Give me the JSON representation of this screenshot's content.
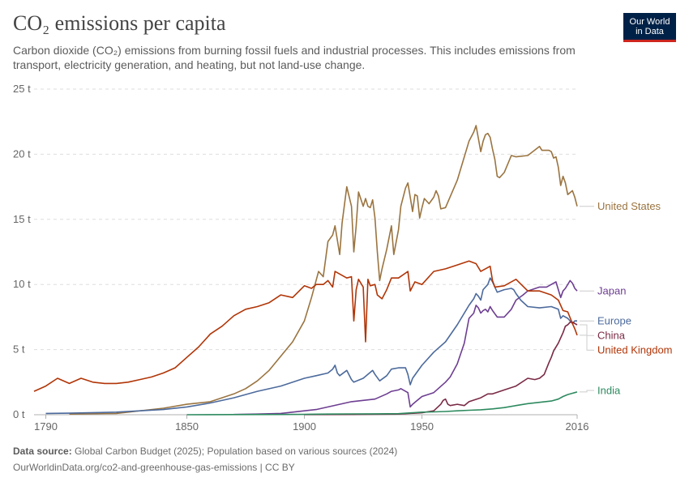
{
  "title": "CO₂ emissions per capita",
  "subtitle": "Carbon dioxide (CO₂) emissions from burning fossil fuels and industrial processes. This includes emissions from transport, electricity generation, and heating, but not land-use change.",
  "logo": {
    "line1": "Our World",
    "line2": "in Data"
  },
  "footer": {
    "source_label": "Data source:",
    "source_text": " Global Carbon Budget (2025); Population based on various sources (2024)",
    "url": "OurWorldinData.org/co2-and-greenhouse-gas-emissions | CC BY"
  },
  "chart_data": {
    "type": "line",
    "xlim": [
      1785,
      2016
    ],
    "ylim": [
      0,
      25
    ],
    "y_ticks": [
      0,
      5,
      10,
      15,
      20,
      25
    ],
    "y_tick_labels": [
      "0 t",
      "5 t",
      "10 t",
      "15 t",
      "20 t",
      "25 t"
    ],
    "x_ticks": [
      1790,
      1850,
      1900,
      1950,
      2016
    ],
    "x_tick_labels": [
      "1790",
      "1850",
      "1900",
      "1950",
      "2016"
    ],
    "grid": "horizontal dashed",
    "series": [
      {
        "name": "United States",
        "color": "#9a7440",
        "x": [
          1800,
          1820,
          1840,
          1850,
          1860,
          1870,
          1875,
          1880,
          1885,
          1890,
          1895,
          1900,
          1903,
          1906,
          1908,
          1910,
          1912,
          1913,
          1915,
          1916,
          1918,
          1920,
          1921,
          1922,
          1923,
          1925,
          1926,
          1927,
          1928,
          1929,
          1930,
          1931,
          1932,
          1933,
          1935,
          1937,
          1938,
          1940,
          1941,
          1943,
          1944,
          1945,
          1946,
          1947,
          1948,
          1949,
          1950,
          1951,
          1953,
          1955,
          1956,
          1957,
          1958,
          1960,
          1965,
          1970,
          1972,
          1973,
          1974,
          1975,
          1976,
          1977,
          1978,
          1979,
          1980,
          1981,
          1982,
          1983,
          1985,
          1988,
          1990,
          1995,
          2000,
          2001,
          2004,
          2005,
          2006,
          2007,
          2008,
          2009,
          2010,
          2011,
          2012,
          2014,
          2015,
          2016
        ],
        "y": [
          0.05,
          0.1,
          0.5,
          0.8,
          1.0,
          1.6,
          2.0,
          2.6,
          3.4,
          4.5,
          5.6,
          7.2,
          9.0,
          11.0,
          10.6,
          13.3,
          13.8,
          14.5,
          12.3,
          14.7,
          17.5,
          16.0,
          12.5,
          14.5,
          17.1,
          16.0,
          16.6,
          16.0,
          15.9,
          16.5,
          15.1,
          12.5,
          10.3,
          11.2,
          12.7,
          14.5,
          12.3,
          14.2,
          16.0,
          17.4,
          17.8,
          16.7,
          15.6,
          16.9,
          16.8,
          15.1,
          15.9,
          16.6,
          16.2,
          16.7,
          17.2,
          16.8,
          15.8,
          15.9,
          18.0,
          21.0,
          21.7,
          22.2,
          21.2,
          20.2,
          21.0,
          21.5,
          21.6,
          21.3,
          20.4,
          19.6,
          18.3,
          18.2,
          18.6,
          19.9,
          19.8,
          19.9,
          20.6,
          20.3,
          20.3,
          20.2,
          19.7,
          19.8,
          19.0,
          17.6,
          18.3,
          17.8,
          16.9,
          17.2,
          16.7,
          16.0
        ]
      },
      {
        "name": "Japan",
        "color": "#6d3e91",
        "x": [
          1870,
          1880,
          1890,
          1900,
          1905,
          1910,
          1915,
          1920,
          1925,
          1930,
          1935,
          1937,
          1940,
          1941,
          1944,
          1945,
          1946,
          1948,
          1950,
          1955,
          1960,
          1962,
          1965,
          1968,
          1970,
          1972,
          1973,
          1974,
          1975,
          1976,
          1977,
          1978,
          1979,
          1980,
          1982,
          1985,
          1988,
          1990,
          1993,
          1995,
          2000,
          2003,
          2005,
          2007,
          2008,
          2009,
          2010,
          2011,
          2013,
          2014,
          2015,
          2016
        ],
        "y": [
          0.02,
          0.05,
          0.1,
          0.3,
          0.4,
          0.6,
          0.8,
          1.0,
          1.1,
          1.2,
          1.6,
          1.8,
          1.9,
          2.0,
          1.7,
          0.6,
          0.8,
          1.1,
          1.4,
          1.7,
          2.5,
          2.9,
          3.9,
          5.5,
          7.4,
          7.8,
          8.4,
          8.2,
          7.8,
          8.0,
          8.1,
          7.9,
          8.3,
          8.0,
          7.5,
          7.5,
          8.1,
          8.8,
          9.2,
          9.5,
          9.8,
          9.8,
          10.0,
          10.2,
          9.6,
          9.0,
          9.5,
          9.7,
          10.3,
          10.1,
          9.7,
          9.5
        ]
      },
      {
        "name": "Europe",
        "color": "#4c6a9c",
        "x": [
          1790,
          1800,
          1820,
          1840,
          1850,
          1860,
          1870,
          1880,
          1890,
          1900,
          1905,
          1910,
          1912,
          1913,
          1914,
          1915,
          1918,
          1920,
          1921,
          1925,
          1929,
          1930,
          1932,
          1935,
          1937,
          1940,
          1943,
          1944,
          1945,
          1946,
          1948,
          1950,
          1955,
          1960,
          1965,
          1970,
          1972,
          1973,
          1974,
          1975,
          1976,
          1978,
          1979,
          1980,
          1981,
          1982,
          1985,
          1988,
          1989,
          1990,
          1992,
          1995,
          2000,
          2005,
          2008,
          2009,
          2010,
          2012,
          2014,
          2015,
          2016
        ],
        "y": [
          0.1,
          0.12,
          0.2,
          0.4,
          0.6,
          0.9,
          1.3,
          1.8,
          2.2,
          2.8,
          3.0,
          3.2,
          3.5,
          3.8,
          3.2,
          3.0,
          3.4,
          2.7,
          2.5,
          2.8,
          3.4,
          3.1,
          2.6,
          3.0,
          3.5,
          3.6,
          3.6,
          3.1,
          2.3,
          2.8,
          3.3,
          3.8,
          4.8,
          5.6,
          6.9,
          8.4,
          8.9,
          9.3,
          9.1,
          8.8,
          9.6,
          10.0,
          10.5,
          10.2,
          9.8,
          9.4,
          9.6,
          9.7,
          9.6,
          9.3,
          8.8,
          8.3,
          8.2,
          8.3,
          8.1,
          7.4,
          7.6,
          7.4,
          7.0,
          7.2,
          7.2
        ]
      },
      {
        "name": "China",
        "color": "#7a2a45",
        "x": [
          1900,
          1920,
          1930,
          1940,
          1950,
          1955,
          1958,
          1959,
          1960,
          1961,
          1962,
          1965,
          1968,
          1970,
          1975,
          1978,
          1980,
          1985,
          1990,
          1995,
          1998,
          2000,
          2002,
          2004,
          2005,
          2006,
          2008,
          2010,
          2011,
          2012,
          2013,
          2014,
          2015,
          2016
        ],
        "y": [
          0.01,
          0.02,
          0.03,
          0.05,
          0.15,
          0.3,
          0.8,
          1.1,
          1.2,
          0.8,
          0.7,
          0.8,
          0.7,
          1.0,
          1.3,
          1.6,
          1.6,
          1.9,
          2.2,
          2.8,
          2.7,
          2.8,
          3.1,
          4.0,
          4.4,
          4.9,
          5.5,
          6.3,
          6.8,
          6.9,
          7.1,
          7.1,
          7.0,
          6.9
        ]
      },
      {
        "name": "United Kingdom",
        "color": "#b13507",
        "x": [
          1785,
          1790,
          1795,
          1800,
          1805,
          1810,
          1815,
          1820,
          1825,
          1830,
          1835,
          1840,
          1845,
          1850,
          1855,
          1860,
          1865,
          1870,
          1875,
          1880,
          1885,
          1890,
          1895,
          1900,
          1903,
          1905,
          1908,
          1910,
          1912,
          1913,
          1915,
          1918,
          1920,
          1921,
          1922,
          1923,
          1925,
          1926,
          1927,
          1928,
          1930,
          1931,
          1933,
          1935,
          1937,
          1940,
          1944,
          1945,
          1947,
          1950,
          1955,
          1960,
          1965,
          1970,
          1973,
          1975,
          1979,
          1980,
          1981,
          1985,
          1990,
          1995,
          2000,
          2005,
          2008,
          2010,
          2012,
          2014,
          2015,
          2016
        ],
        "y": [
          1.8,
          2.2,
          2.8,
          2.4,
          2.8,
          2.5,
          2.4,
          2.4,
          2.5,
          2.7,
          2.9,
          3.2,
          3.6,
          4.4,
          5.2,
          6.2,
          6.8,
          7.6,
          8.1,
          8.3,
          8.6,
          9.2,
          9.0,
          9.9,
          9.7,
          10.0,
          10.0,
          10.3,
          9.8,
          11.0,
          10.8,
          10.5,
          10.6,
          7.2,
          9.6,
          10.4,
          9.8,
          5.6,
          10.4,
          9.9,
          10.0,
          9.2,
          8.9,
          9.6,
          10.5,
          10.5,
          11.0,
          9.5,
          10.2,
          10.0,
          11.0,
          11.2,
          11.5,
          11.8,
          11.6,
          11.0,
          11.4,
          10.3,
          9.8,
          9.9,
          10.4,
          9.5,
          9.5,
          9.2,
          8.8,
          8.0,
          7.9,
          7.0,
          6.6,
          6.1
        ]
      },
      {
        "name": "India",
        "color": "#2d8a5f",
        "x": [
          1850,
          1870,
          1890,
          1900,
          1910,
          1920,
          1930,
          1940,
          1950,
          1955,
          1960,
          1965,
          1970,
          1975,
          1980,
          1985,
          1990,
          1995,
          2000,
          2005,
          2008,
          2010,
          2012,
          2014,
          2015,
          2016
        ],
        "y": [
          0.0,
          0.01,
          0.02,
          0.03,
          0.05,
          0.06,
          0.07,
          0.08,
          0.2,
          0.22,
          0.25,
          0.3,
          0.34,
          0.38,
          0.45,
          0.55,
          0.7,
          0.85,
          0.95,
          1.05,
          1.2,
          1.4,
          1.55,
          1.65,
          1.7,
          1.75
        ]
      }
    ]
  }
}
